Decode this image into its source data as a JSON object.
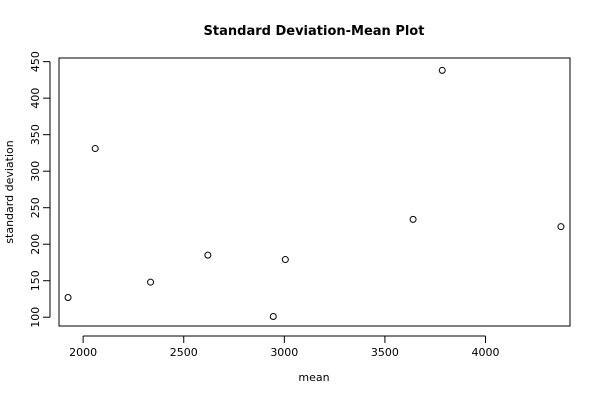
{
  "chart_data": {
    "type": "scatter",
    "title": "Standard Deviation-Mean Plot",
    "xlabel": "mean",
    "ylabel": "standard deviation",
    "xlim": [
      1880,
      4420
    ],
    "ylim": [
      88,
      455
    ],
    "x_ticks": [
      2000,
      2500,
      3000,
      3500,
      4000
    ],
    "y_ticks": [
      100,
      150,
      200,
      250,
      300,
      350,
      400,
      450
    ],
    "points": [
      {
        "x": 1925,
        "y": 127
      },
      {
        "x": 2060,
        "y": 331
      },
      {
        "x": 2335,
        "y": 148
      },
      {
        "x": 2620,
        "y": 185
      },
      {
        "x": 2945,
        "y": 101
      },
      {
        "x": 3005,
        "y": 179
      },
      {
        "x": 3640,
        "y": 234
      },
      {
        "x": 3785,
        "y": 438
      },
      {
        "x": 4375,
        "y": 224
      }
    ],
    "grid": false,
    "marker": "open-circle"
  }
}
